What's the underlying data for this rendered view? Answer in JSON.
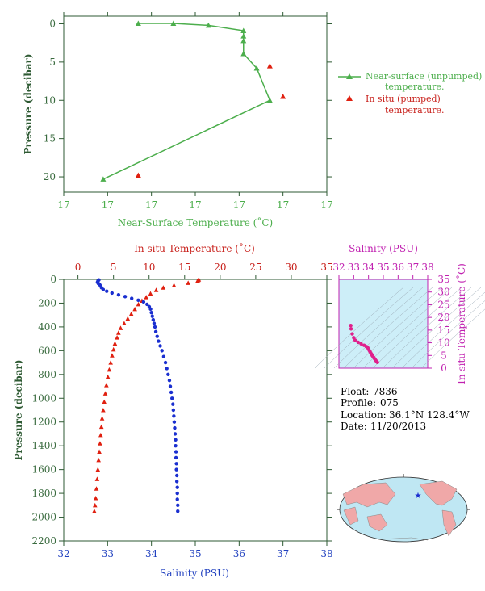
{
  "info": {
    "float_label": "Float:",
    "float": "7836",
    "profile_label": "Profile:",
    "profile": "075",
    "location_label": "Location:",
    "location": "36.1°N  128.4°W",
    "date_label": "Date:",
    "date": "11/20/2013"
  },
  "colors": {
    "green": "#4cae4c",
    "red": "#e02010",
    "blue": "#1a2fd0",
    "magenta": "#e0208c",
    "panel_bg": "#cdeef8",
    "axis": "#2e5a33"
  },
  "chart_data": [
    {
      "type": "line",
      "xlabel": "Near-Surface Temperature (˚C)",
      "ylabel": "Pressure (decibar)",
      "x_tick_labels": [
        "17",
        "17",
        "17",
        "17",
        "17",
        "17",
        "17"
      ],
      "yticks": [
        0,
        5,
        10,
        15,
        20
      ],
      "ylim": [
        -1,
        22
      ],
      "y_reversed": true,
      "series": [
        {
          "name": "Near-surface (unpumped) temperature.",
          "marker": "triangle-line",
          "color_key": "green",
          "points": [
            [
              16.67,
              -0.05
            ],
            [
              16.75,
              -0.05
            ],
            [
              16.83,
              0.2
            ],
            [
              16.91,
              0.9
            ],
            [
              16.91,
              1.6
            ],
            [
              16.91,
              2.2
            ],
            [
              16.91,
              3.9
            ],
            [
              16.94,
              5.8
            ],
            [
              16.97,
              10.0
            ],
            [
              16.59,
              20.3
            ]
          ]
        },
        {
          "name": "In situ (pumped) temperature.",
          "marker": "triangle",
          "color_key": "red",
          "points": [
            [
              16.97,
              5.5
            ],
            [
              17.0,
              9.5
            ],
            [
              16.67,
              19.8
            ]
          ]
        }
      ],
      "xlim": [
        16.5,
        17.1
      ]
    },
    {
      "type": "scatter",
      "ylabel": "Pressure (decibar)",
      "top_axis": {
        "label": "In situ Temperature (˚C)",
        "xlim": [
          -2,
          35
        ],
        "xticks": [
          0,
          5,
          10,
          15,
          20,
          25,
          30,
          35
        ]
      },
      "bottom_axis": {
        "label": "Salinity (PSU)",
        "xlim": [
          32,
          38
        ],
        "xticks": [
          32,
          33,
          34,
          35,
          36,
          37,
          38
        ]
      },
      "ylim": [
        0,
        2200
      ],
      "yticks": [
        0,
        200,
        400,
        600,
        800,
        1000,
        1200,
        1400,
        1600,
        1800,
        2000,
        2200
      ],
      "y_reversed": true,
      "series": [
        {
          "name": "In situ Temperature",
          "axis": "top",
          "marker": "triangle",
          "color_key": "red",
          "points": [
            [
              17.0,
              2
            ],
            [
              16.9,
              8
            ],
            [
              16.8,
              15
            ],
            [
              15.5,
              30
            ],
            [
              13.5,
              50
            ],
            [
              12.0,
              70
            ],
            [
              11.0,
              90
            ],
            [
              10.2,
              120
            ],
            [
              9.6,
              150
            ],
            [
              9.0,
              180
            ],
            [
              8.5,
              210
            ],
            [
              8.0,
              250
            ],
            [
              7.5,
              290
            ],
            [
              7.0,
              330
            ],
            [
              6.5,
              370
            ],
            [
              6.0,
              410
            ],
            [
              5.7,
              450
            ],
            [
              5.5,
              490
            ],
            [
              5.2,
              540
            ],
            [
              5.0,
              590
            ],
            [
              4.8,
              640
            ],
            [
              4.6,
              700
            ],
            [
              4.4,
              760
            ],
            [
              4.2,
              820
            ],
            [
              4.0,
              890
            ],
            [
              3.85,
              960
            ],
            [
              3.7,
              1030
            ],
            [
              3.55,
              1100
            ],
            [
              3.4,
              1170
            ],
            [
              3.3,
              1240
            ],
            [
              3.2,
              1310
            ],
            [
              3.1,
              1380
            ],
            [
              3.0,
              1450
            ],
            [
              2.9,
              1520
            ],
            [
              2.8,
              1600
            ],
            [
              2.7,
              1680
            ],
            [
              2.6,
              1760
            ],
            [
              2.5,
              1840
            ],
            [
              2.4,
              1900
            ],
            [
              2.3,
              1950
            ]
          ]
        },
        {
          "name": "Salinity",
          "axis": "bottom",
          "marker": "dot",
          "color_key": "blue",
          "points": [
            [
              32.8,
              5
            ],
            [
              32.78,
              15
            ],
            [
              32.77,
              25
            ],
            [
              32.79,
              35
            ],
            [
              32.82,
              45
            ],
            [
              32.84,
              55
            ],
            [
              32.86,
              70
            ],
            [
              32.9,
              85
            ],
            [
              32.98,
              100
            ],
            [
              33.1,
              115
            ],
            [
              33.25,
              130
            ],
            [
              33.4,
              145
            ],
            [
              33.55,
              160
            ],
            [
              33.7,
              175
            ],
            [
              33.82,
              190
            ],
            [
              33.9,
              210
            ],
            [
              33.95,
              230
            ],
            [
              33.98,
              250
            ],
            [
              34.0,
              280
            ],
            [
              34.02,
              310
            ],
            [
              34.04,
              340
            ],
            [
              34.06,
              370
            ],
            [
              34.08,
              400
            ],
            [
              34.1,
              440
            ],
            [
              34.13,
              480
            ],
            [
              34.16,
              520
            ],
            [
              34.2,
              560
            ],
            [
              34.24,
              600
            ],
            [
              34.28,
              650
            ],
            [
              34.32,
              700
            ],
            [
              34.35,
              750
            ],
            [
              34.38,
              800
            ],
            [
              34.41,
              850
            ],
            [
              34.43,
              900
            ],
            [
              34.45,
              950
            ],
            [
              34.47,
              1000
            ],
            [
              34.49,
              1050
            ],
            [
              34.5,
              1100
            ],
            [
              34.51,
              1150
            ],
            [
              34.52,
              1200
            ],
            [
              34.53,
              1250
            ],
            [
              34.54,
              1300
            ],
            [
              34.55,
              1350
            ],
            [
              34.55,
              1400
            ],
            [
              34.56,
              1450
            ],
            [
              34.56,
              1500
            ],
            [
              34.57,
              1550
            ],
            [
              34.57,
              1600
            ],
            [
              34.58,
              1650
            ],
            [
              34.58,
              1700
            ],
            [
              34.59,
              1750
            ],
            [
              34.59,
              1800
            ],
            [
              34.59,
              1850
            ],
            [
              34.6,
              1900
            ],
            [
              34.6,
              1950
            ]
          ]
        }
      ]
    },
    {
      "type": "scatter",
      "top_axis": {
        "label": "Salinity (PSU)",
        "xlim": [
          32,
          38
        ],
        "xticks": [
          32,
          33,
          34,
          35,
          36,
          37,
          38
        ]
      },
      "ylabel": "In situ Temperature (˚C)",
      "ylim": [
        0,
        35
      ],
      "yticks": [
        0,
        5,
        10,
        15,
        20,
        25,
        30,
        35
      ],
      "series": [
        {
          "name": "T-S",
          "marker": "dot",
          "color_key": "magenta",
          "points": [
            [
              32.8,
              16.8
            ],
            [
              32.82,
              15.5
            ],
            [
              32.9,
              13.5
            ],
            [
              33.0,
              12.0
            ],
            [
              33.1,
              11.0
            ],
            [
              33.3,
              10.2
            ],
            [
              33.5,
              9.6
            ],
            [
              33.7,
              9.0
            ],
            [
              33.85,
              8.5
            ],
            [
              33.95,
              8.0
            ],
            [
              34.0,
              7.5
            ],
            [
              34.05,
              7.0
            ],
            [
              34.1,
              6.5
            ],
            [
              34.15,
              6.0
            ],
            [
              34.2,
              5.5
            ],
            [
              34.25,
              5.0
            ],
            [
              34.3,
              4.6
            ],
            [
              34.35,
              4.2
            ],
            [
              34.4,
              3.8
            ],
            [
              34.45,
              3.4
            ],
            [
              34.5,
              3.0
            ],
            [
              34.55,
              2.6
            ],
            [
              34.6,
              2.3
            ]
          ]
        }
      ]
    }
  ]
}
